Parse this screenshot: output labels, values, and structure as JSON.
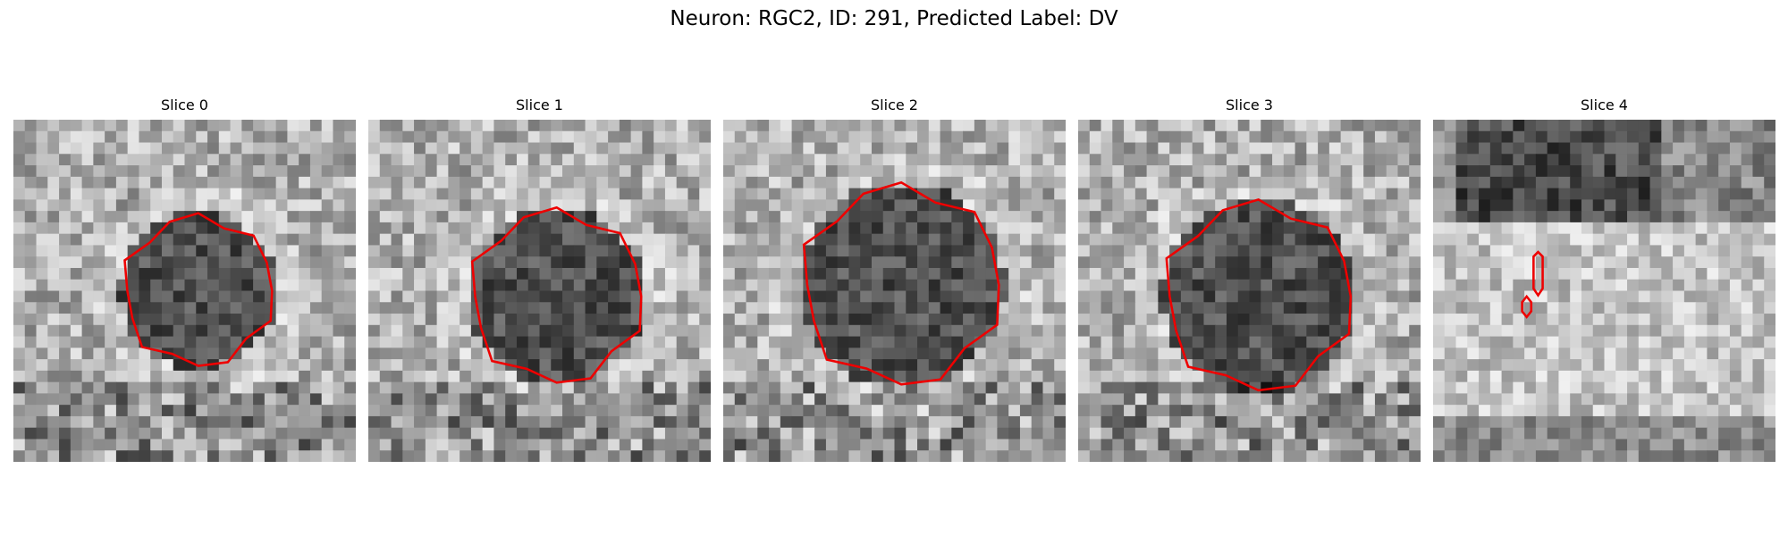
{
  "header": {
    "title": "Neuron: RGC2, ID: 291, Predicted Label: DV"
  },
  "panels": [
    {
      "title": "Slice 0"
    },
    {
      "title": "Slice 1"
    },
    {
      "title": "Slice 2"
    },
    {
      "title": "Slice 3"
    },
    {
      "title": "Slice 4"
    }
  ]
}
